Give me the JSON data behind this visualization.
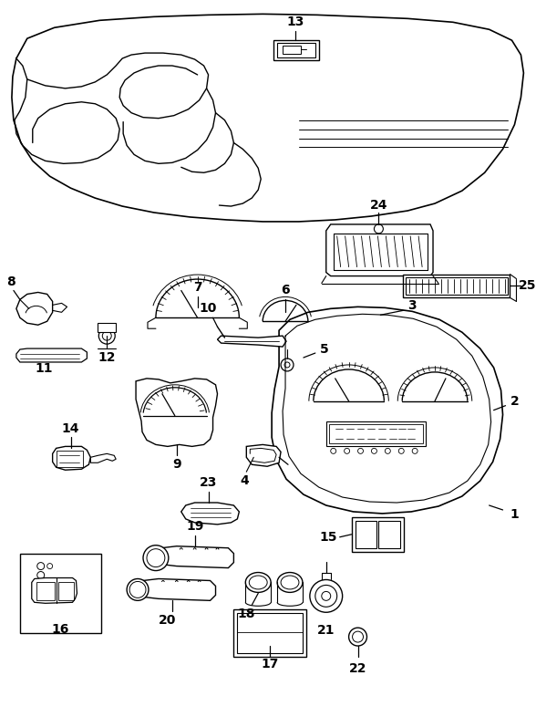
{
  "bg_color": "#ffffff",
  "line_color": "#000000",
  "fig_width": 5.88,
  "fig_height": 7.86,
  "dpi": 100
}
